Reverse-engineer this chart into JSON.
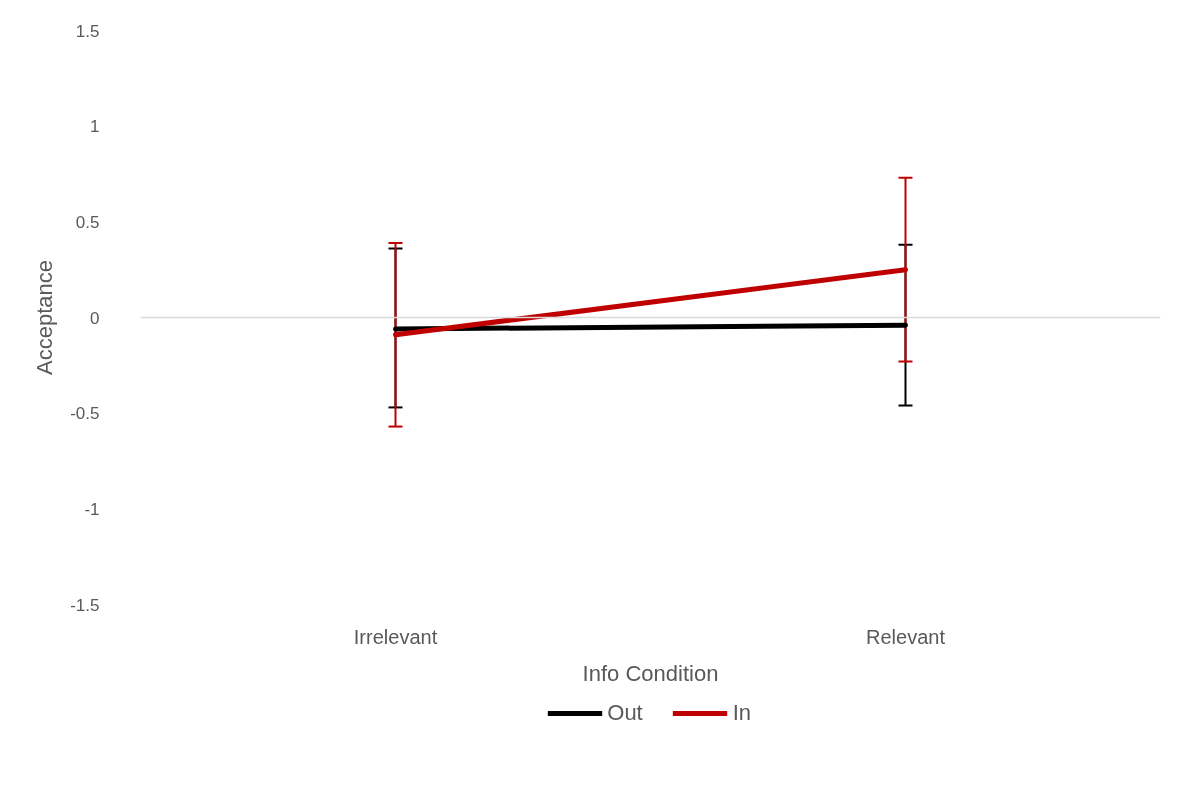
{
  "chart_data": {
    "type": "line",
    "xlabel": "Info Condition",
    "ylabel": "Acceptance",
    "categories": [
      "Irrelevant",
      "Relevant"
    ],
    "series": [
      {
        "name": "Out",
        "color": "#000000",
        "values": [
          -0.06,
          -0.04
        ],
        "errors": [
          [
            -0.47,
            0.36
          ],
          [
            -0.46,
            0.38
          ]
        ]
      },
      {
        "name": "In",
        "color": "#c00000",
        "values": [
          -0.09,
          0.25
        ],
        "errors": [
          [
            -0.57,
            0.39
          ],
          [
            -0.23,
            0.73
          ]
        ]
      }
    ],
    "ylim": [
      -1.5,
      1.5
    ],
    "yticks": [
      {
        "value": -1.5,
        "label": "-1.5"
      },
      {
        "value": -1,
        "label": "-1"
      },
      {
        "value": -0.5,
        "label": "-0.5"
      },
      {
        "value": 0,
        "label": "0"
      },
      {
        "value": 0.5,
        "label": "0.5"
      },
      {
        "value": 1,
        "label": "1"
      },
      {
        "value": 1.5,
        "label": "1.5"
      }
    ],
    "ref_lines": [
      {
        "axis": "y",
        "value": 0,
        "color": "#d9d9d9"
      }
    ],
    "grid": false,
    "legend": "bottom",
    "marker": "none",
    "line_style": "solid"
  }
}
